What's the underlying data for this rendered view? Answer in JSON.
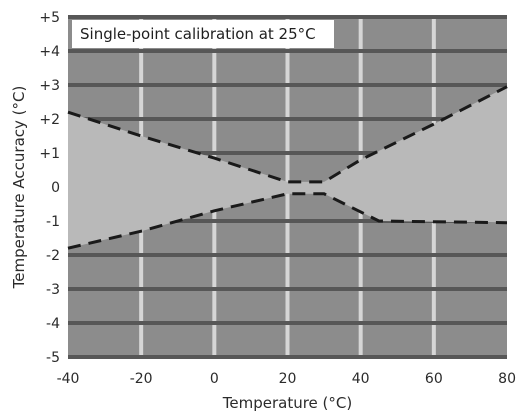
{
  "chart_data": {
    "type": "area",
    "annotation": "Single-point calibration at 25°C",
    "xlabel": "Temperature (°C)",
    "ylabel": "Temperature Accuracy (°C)",
    "xlim": [
      -40,
      80
    ],
    "ylim": [
      -5,
      5
    ],
    "x_ticks": [
      -40,
      -20,
      0,
      20,
      40,
      60,
      80
    ],
    "x_tick_labels": [
      "-40",
      "-20",
      "0",
      "20",
      "40",
      "60",
      "80"
    ],
    "y_ticks": [
      5,
      4,
      3,
      2,
      1,
      0,
      -1,
      -2,
      -3,
      -4,
      -5
    ],
    "y_tick_labels": [
      "+5",
      "+4",
      "+3",
      "+2",
      "+1",
      "0",
      "-1",
      "-2",
      "-3",
      "-4",
      "-5"
    ],
    "grid": true,
    "series": [
      {
        "values": [
          {
            "x": -40,
            "y": 2.2
          },
          {
            "x": -20,
            "y": 1.5
          },
          {
            "x": 0,
            "y": 0.85
          },
          {
            "x": 20,
            "y": 0.15
          },
          {
            "x": 30,
            "y": 0.15
          },
          {
            "x": 40,
            "y": 0.8
          },
          {
            "x": 60,
            "y": 1.85
          },
          {
            "x": 80,
            "y": 2.95
          }
        ]
      },
      {
        "values": [
          {
            "x": -40,
            "y": -1.8
          },
          {
            "x": -20,
            "y": -1.3
          },
          {
            "x": 0,
            "y": -0.7
          },
          {
            "x": 20,
            "y": -0.2
          },
          {
            "x": 30,
            "y": -0.2
          },
          {
            "x": 45,
            "y": -1.0
          },
          {
            "x": 80,
            "y": -1.05
          }
        ]
      }
    ],
    "colors": {
      "plot_background": "#8c8c8c",
      "band_fill": "#b9b9b9",
      "major_grid": "#575757",
      "minor_grid": "#d6d6d6",
      "boundary_line": "#1a1a1a",
      "annotation_box": "#ffffff"
    }
  }
}
